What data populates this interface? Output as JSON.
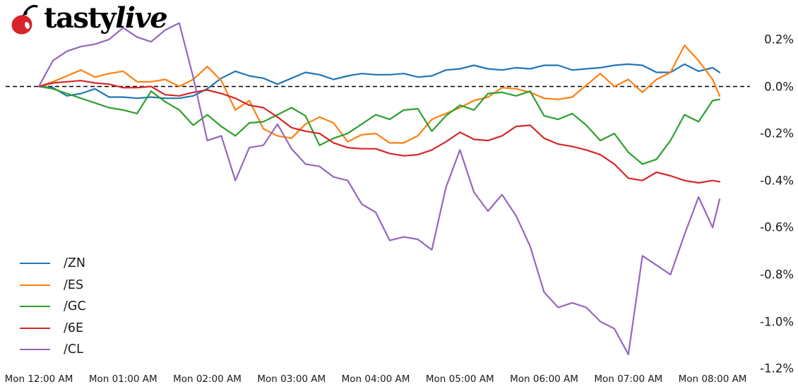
{
  "logo": {
    "brand_prefix": "tasty",
    "brand_suffix": "live",
    "cherry_color": "#d8232a",
    "text_color": "#000000"
  },
  "chart_data": {
    "type": "line",
    "x_unit": "minutes after Mon 12:00 AM",
    "x_minutes": [
      0,
      10,
      20,
      30,
      40,
      50,
      60,
      70,
      80,
      90,
      100,
      110,
      120,
      130,
      140,
      150,
      160,
      170,
      180,
      190,
      200,
      210,
      220,
      230,
      240,
      250,
      260,
      270,
      280,
      290,
      300,
      310,
      320,
      330,
      340,
      350,
      360,
      370,
      380,
      390,
      400,
      410,
      420,
      430,
      440,
      450,
      460,
      470,
      480,
      485
    ],
    "series": [
      {
        "name": "/ZN",
        "color": "#1f77b4",
        "values": [
          0.0,
          -0.005,
          -0.04,
          -0.03,
          -0.01,
          -0.045,
          -0.045,
          -0.05,
          -0.045,
          -0.05,
          -0.05,
          -0.04,
          -0.01,
          0.035,
          0.065,
          0.045,
          0.035,
          0.01,
          0.035,
          0.06,
          0.05,
          0.03,
          0.045,
          0.055,
          0.05,
          0.05,
          0.055,
          0.04,
          0.045,
          0.07,
          0.075,
          0.09,
          0.075,
          0.07,
          0.08,
          0.075,
          0.09,
          0.09,
          0.07,
          0.075,
          0.08,
          0.09,
          0.095,
          0.09,
          0.06,
          0.06,
          0.095,
          0.065,
          0.08,
          0.06
        ]
      },
      {
        "name": "/ES",
        "color": "#ff7f0e",
        "values": [
          0.0,
          0.02,
          0.045,
          0.07,
          0.04,
          0.055,
          0.065,
          0.02,
          0.02,
          0.03,
          0.0,
          0.03,
          0.085,
          0.025,
          -0.1,
          -0.06,
          -0.18,
          -0.21,
          -0.22,
          -0.16,
          -0.13,
          -0.155,
          -0.235,
          -0.205,
          -0.2,
          -0.24,
          -0.24,
          -0.21,
          -0.14,
          -0.115,
          -0.09,
          -0.06,
          -0.045,
          -0.005,
          -0.01,
          -0.025,
          -0.05,
          -0.055,
          -0.045,
          0.005,
          0.055,
          0.0,
          0.03,
          -0.025,
          0.03,
          0.06,
          0.175,
          0.11,
          0.03,
          -0.04
        ]
      },
      {
        "name": "/GC",
        "color": "#2ca02c",
        "values": [
          0.0,
          -0.01,
          -0.03,
          -0.05,
          -0.07,
          -0.09,
          -0.1,
          -0.115,
          -0.02,
          -0.065,
          -0.1,
          -0.165,
          -0.12,
          -0.17,
          -0.21,
          -0.155,
          -0.15,
          -0.12,
          -0.09,
          -0.125,
          -0.25,
          -0.22,
          -0.2,
          -0.16,
          -0.12,
          -0.14,
          -0.1,
          -0.095,
          -0.19,
          -0.125,
          -0.08,
          -0.1,
          -0.03,
          -0.025,
          -0.04,
          -0.02,
          -0.125,
          -0.14,
          -0.115,
          -0.165,
          -0.23,
          -0.2,
          -0.28,
          -0.33,
          -0.31,
          -0.23,
          -0.12,
          -0.15,
          -0.06,
          -0.055
        ]
      },
      {
        "name": "/6E",
        "color": "#d62728",
        "values": [
          0.0,
          0.015,
          0.02,
          0.025,
          0.015,
          0.01,
          -0.005,
          -0.005,
          0.0,
          -0.035,
          -0.04,
          -0.025,
          -0.015,
          -0.03,
          -0.05,
          -0.08,
          -0.09,
          -0.13,
          -0.175,
          -0.19,
          -0.2,
          -0.24,
          -0.26,
          -0.265,
          -0.265,
          -0.285,
          -0.295,
          -0.29,
          -0.27,
          -0.235,
          -0.195,
          -0.225,
          -0.23,
          -0.21,
          -0.17,
          -0.165,
          -0.22,
          -0.245,
          -0.255,
          -0.27,
          -0.29,
          -0.33,
          -0.39,
          -0.4,
          -0.365,
          -0.38,
          -0.4,
          -0.41,
          -0.4,
          -0.405
        ]
      },
      {
        "name": "/CL",
        "color": "#9467bd",
        "values": [
          0.0,
          0.11,
          0.15,
          0.17,
          0.18,
          0.2,
          0.25,
          0.21,
          0.19,
          0.24,
          0.27,
          0.04,
          -0.23,
          -0.21,
          -0.4,
          -0.26,
          -0.25,
          -0.16,
          -0.265,
          -0.33,
          -0.34,
          -0.385,
          -0.4,
          -0.5,
          -0.535,
          -0.655,
          -0.64,
          -0.65,
          -0.695,
          -0.43,
          -0.27,
          -0.45,
          -0.53,
          -0.46,
          -0.55,
          -0.68,
          -0.875,
          -0.94,
          -0.92,
          -0.94,
          -1.0,
          -1.03,
          -1.14,
          -0.72,
          -0.76,
          -0.8,
          -0.63,
          -0.47,
          -0.6,
          -0.48
        ]
      }
    ],
    "x_ticks": {
      "minutes": [
        0,
        60,
        120,
        180,
        240,
        300,
        360,
        420,
        480
      ],
      "labels": [
        "Mon 12:00 AM",
        "Mon 01:00 AM",
        "Mon 02:00 AM",
        "Mon 03:00 AM",
        "Mon 04:00 AM",
        "Mon 05:00 AM",
        "Mon 06:00 AM",
        "Mon 07:00 AM",
        "Mon 08:00 AM"
      ]
    },
    "y_ticks": {
      "values": [
        0.2,
        0.0,
        -0.2,
        -0.4,
        -0.6,
        -0.8,
        -1.0,
        -1.2
      ],
      "labels": [
        "0.2%",
        "0.0%",
        "-0.2%",
        "-0.4%",
        "-0.6%",
        "-0.8%",
        "-1.0%",
        "-1.2%"
      ]
    },
    "baseline": {
      "value": 0.0,
      "style": "dashed",
      "color": "#000000"
    },
    "ylim": [
      -1.29,
      0.36
    ],
    "xlim_minutes": [
      0,
      485
    ],
    "grid": false,
    "legend_position": "lower-left",
    "title": ""
  },
  "legend": {
    "items": [
      {
        "label": "/ZN",
        "color": "#1f77b4"
      },
      {
        "label": "/ES",
        "color": "#ff7f0e"
      },
      {
        "label": "/GC",
        "color": "#2ca02c"
      },
      {
        "label": "/6E",
        "color": "#d62728"
      },
      {
        "label": "/CL",
        "color": "#9467bd"
      }
    ]
  }
}
